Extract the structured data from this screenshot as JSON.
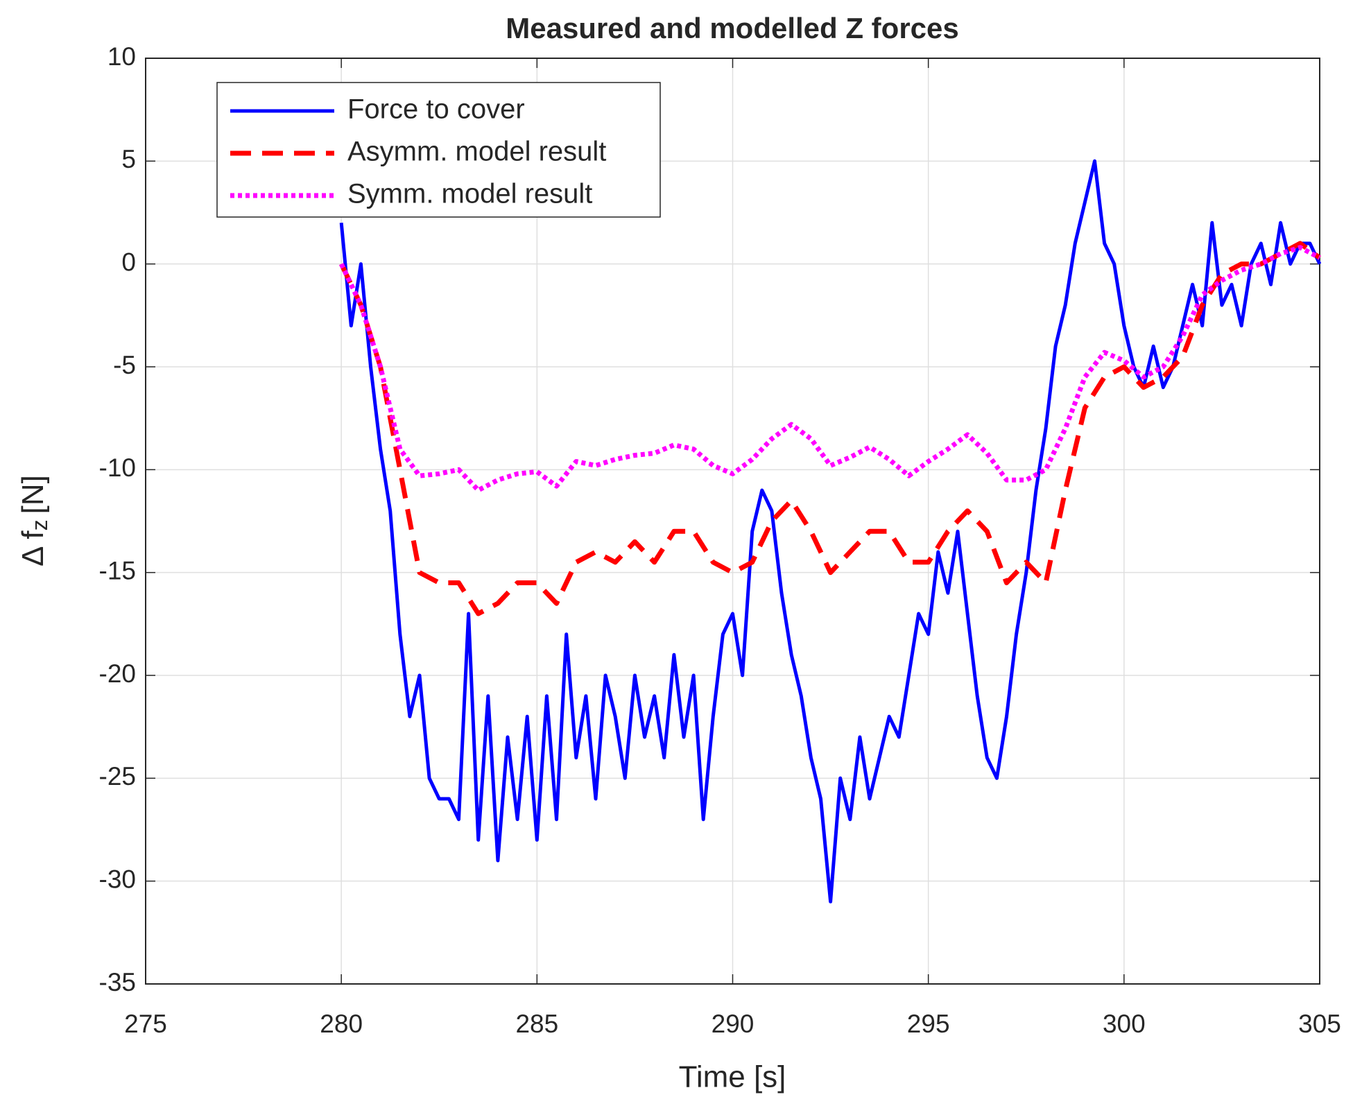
{
  "chart_data": {
    "type": "line",
    "title": "Measured and modelled Z forces",
    "xlabel": "Time [s]",
    "ylabel": {
      "main": "Δ f",
      "sub": "z",
      "unit": "[N]"
    },
    "xlim": [
      275,
      305
    ],
    "xticks": [
      275,
      280,
      285,
      290,
      295,
      300,
      305
    ],
    "ylim": [
      -35,
      10
    ],
    "yticks": [
      -35,
      -30,
      -25,
      -20,
      -15,
      -10,
      -5,
      0,
      5,
      10
    ],
    "grid": true,
    "legend": "upper left",
    "series": [
      {
        "name": "Force to cover",
        "color": "#0000ff",
        "style": "solid",
        "x": [
          280,
          280.25,
          280.5,
          280.75,
          281,
          281.25,
          281.5,
          281.75,
          282,
          282.25,
          282.5,
          282.75,
          283,
          283.25,
          283.5,
          283.75,
          284,
          284.25,
          284.5,
          284.75,
          285,
          285.25,
          285.5,
          285.75,
          286,
          286.25,
          286.5,
          286.75,
          287,
          287.25,
          287.5,
          287.75,
          288,
          288.25,
          288.5,
          288.75,
          289,
          289.25,
          289.5,
          289.75,
          290,
          290.25,
          290.5,
          290.75,
          291,
          291.25,
          291.5,
          291.75,
          292,
          292.25,
          292.5,
          292.75,
          293,
          293.25,
          293.5,
          293.75,
          294,
          294.25,
          294.5,
          294.75,
          295,
          295.25,
          295.5,
          295.75,
          296,
          296.25,
          296.5,
          296.75,
          297,
          297.25,
          297.5,
          297.75,
          298,
          298.25,
          298.5,
          298.75,
          299,
          299.25,
          299.5,
          299.75,
          300,
          300.25,
          300.5,
          300.75,
          301,
          301.25,
          301.5,
          301.75,
          302,
          302.25,
          302.5,
          302.75,
          303,
          303.25,
          303.5,
          303.75,
          304,
          304.25,
          304.5,
          304.75,
          305
        ],
        "values": [
          2,
          -3,
          0,
          -5,
          -9,
          -12,
          -18,
          -22,
          -20,
          -25,
          -26,
          -26,
          -27,
          -17,
          -28,
          -21,
          -29,
          -23,
          -27,
          -22,
          -28,
          -21,
          -27,
          -18,
          -24,
          -21,
          -26,
          -20,
          -22,
          -25,
          -20,
          -23,
          -21,
          -24,
          -19,
          -23,
          -20,
          -27,
          -22,
          -18,
          -17,
          -20,
          -13,
          -11,
          -12,
          -16,
          -19,
          -21,
          -24,
          -26,
          -31,
          -25,
          -27,
          -23,
          -26,
          -24,
          -22,
          -23,
          -20,
          -17,
          -18,
          -14,
          -16,
          -13,
          -17,
          -21,
          -24,
          -25,
          -22,
          -18,
          -15,
          -11,
          -8,
          -4,
          -2,
          1,
          3,
          5,
          1,
          0,
          -3,
          -5,
          -6,
          -4,
          -6,
          -5,
          -3,
          -1,
          -3,
          2,
          -2,
          -1,
          -3,
          0,
          1,
          -1,
          2,
          0,
          1,
          1,
          0
        ]
      },
      {
        "name": "Asymm. model result",
        "color": "#ff0000",
        "style": "dashed",
        "x": [
          280,
          280.5,
          281,
          281.5,
          282,
          282.5,
          283,
          283.5,
          284,
          284.5,
          285,
          285.5,
          286,
          286.5,
          287,
          287.5,
          288,
          288.5,
          289,
          289.5,
          290,
          290.5,
          291,
          291.5,
          292,
          292.5,
          293,
          293.5,
          294,
          294.5,
          295,
          295.5,
          296,
          296.5,
          297,
          297.5,
          298,
          298.5,
          299,
          299.5,
          300,
          300.5,
          301,
          301.5,
          302,
          302.5,
          303,
          303.5,
          304,
          304.5,
          305
        ],
        "values": [
          0,
          -2,
          -5,
          -10,
          -15,
          -15.5,
          -15.5,
          -17,
          -16.5,
          -15.5,
          -15.5,
          -16.5,
          -14.5,
          -14,
          -14.5,
          -13.5,
          -14.5,
          -13,
          -13,
          -14.5,
          -15,
          -14.5,
          -12.5,
          -11.5,
          -13,
          -15,
          -14,
          -13,
          -13,
          -14.5,
          -14.5,
          -13,
          -12,
          -13,
          -15.5,
          -14.5,
          -15.5,
          -11,
          -7,
          -5.5,
          -5,
          -6,
          -5.5,
          -4.5,
          -2,
          -0.5,
          0,
          0,
          0.5,
          1,
          0.3
        ]
      },
      {
        "name": "Symm. model result",
        "color": "#ff00ff",
        "style": "dotted",
        "x": [
          280,
          280.5,
          281,
          281.5,
          282,
          282.5,
          283,
          283.5,
          284,
          284.5,
          285,
          285.5,
          286,
          286.5,
          287,
          287.5,
          288,
          288.5,
          289,
          289.5,
          290,
          290.5,
          291,
          291.5,
          292,
          292.5,
          293,
          293.5,
          294,
          294.5,
          295,
          295.5,
          296,
          296.5,
          297,
          297.5,
          298,
          298.5,
          299,
          299.5,
          300,
          300.5,
          301,
          301.5,
          302,
          302.5,
          303,
          303.5,
          304,
          304.5,
          305
        ],
        "values": [
          0,
          -2,
          -5,
          -9,
          -10.3,
          -10.2,
          -10,
          -11,
          -10.5,
          -10.2,
          -10.1,
          -10.8,
          -9.6,
          -9.8,
          -9.5,
          -9.3,
          -9.2,
          -8.8,
          -9,
          -9.8,
          -10.2,
          -9.5,
          -8.5,
          -7.8,
          -8.5,
          -9.8,
          -9.4,
          -8.9,
          -9.5,
          -10.3,
          -9.6,
          -9,
          -8.3,
          -9.2,
          -10.5,
          -10.5,
          -10,
          -8,
          -5.5,
          -4.3,
          -4.7,
          -5.5,
          -5,
          -3.5,
          -1.5,
          -0.8,
          -0.3,
          0,
          0.5,
          0.8,
          0.3
        ]
      }
    ]
  }
}
